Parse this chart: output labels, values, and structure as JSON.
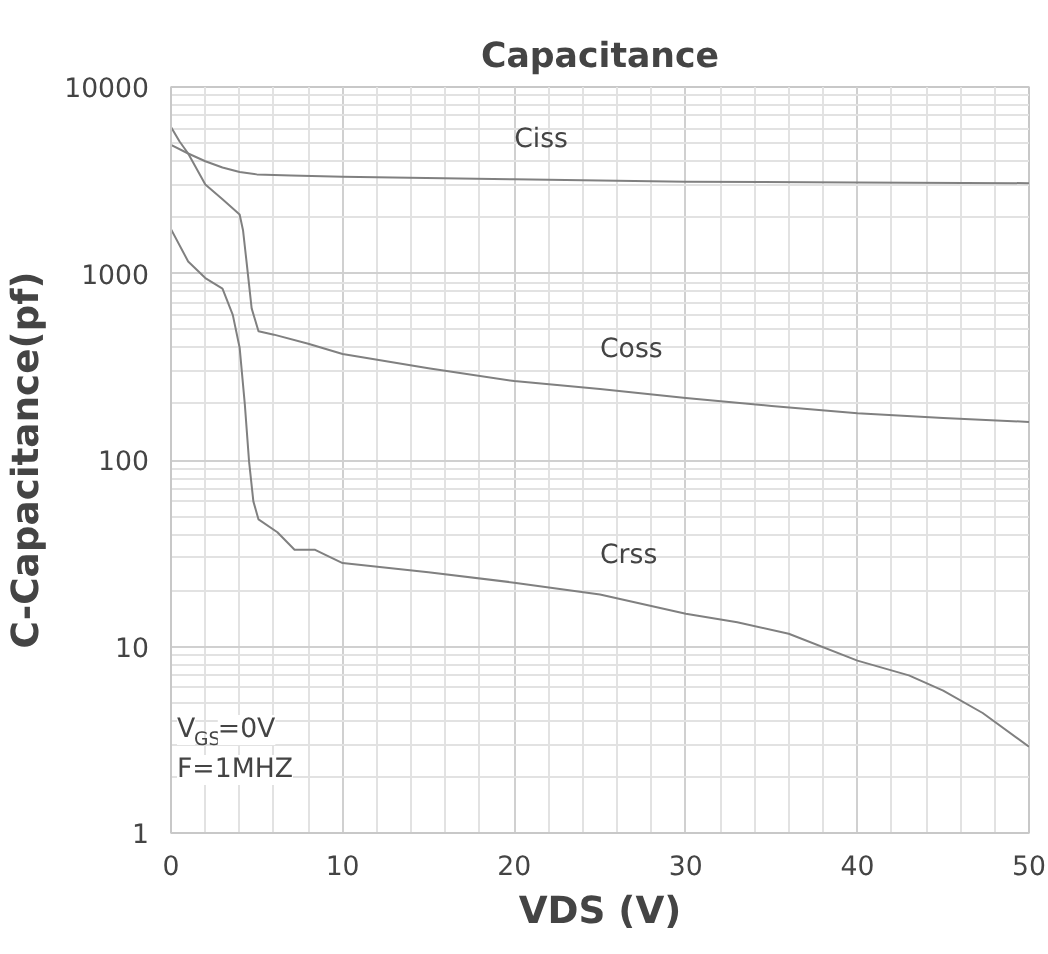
{
  "chart_data": {
    "type": "line",
    "title": "Capacitance",
    "xlabel": "VDS (V)",
    "ylabel": "C-Capacitance(pf)",
    "xlim": [
      0,
      50
    ],
    "ylim": [
      1,
      10000
    ],
    "xticks": [
      0,
      10,
      20,
      30,
      40,
      50
    ],
    "yticks": [
      1,
      10,
      100,
      1000,
      10000
    ],
    "log": "y",
    "grid": true,
    "marker": "none",
    "line_style": "solid",
    "series": [
      {
        "name": "Ciss",
        "color": "#808080",
        "x": [
          0,
          1,
          2,
          3,
          4,
          5,
          7,
          10,
          20,
          30,
          40,
          50
        ],
        "values": [
          4900,
          4400,
          4000,
          3700,
          3500,
          3400,
          3350,
          3300,
          3200,
          3100,
          3080,
          3050
        ]
      },
      {
        "name": "Coss",
        "color": "#808080",
        "x": [
          0,
          0.5,
          1,
          2,
          3,
          4,
          4.2,
          4.4,
          4.7,
          5.1,
          6,
          8,
          10,
          15,
          20,
          25,
          30,
          35,
          40,
          45,
          50
        ],
        "values": [
          6100,
          5100,
          4400,
          3000,
          2500,
          2070,
          1700,
          1160,
          650,
          490,
          470,
          420,
          370,
          310,
          265,
          240,
          215,
          195,
          178,
          168,
          160
        ]
      },
      {
        "name": "Crss",
        "color": "#808080",
        "x": [
          0,
          1,
          2,
          3,
          3.6,
          4,
          4.3,
          4.55,
          4.8,
          5.1,
          6.2,
          7.2,
          8.4,
          9,
          10,
          15,
          20,
          25,
          30,
          33,
          36,
          40,
          43,
          45,
          47.3,
          50
        ],
        "values": [
          1730,
          1160,
          945,
          830,
          600,
          400,
          200,
          98,
          60,
          48,
          41,
          33,
          33,
          31,
          28,
          25,
          22,
          19,
          15,
          13.5,
          11.7,
          8.4,
          7,
          5.8,
          4.4,
          2.9
        ]
      }
    ],
    "annotations": [
      "V$_{GS}$=0V",
      "F=1MHZ"
    ]
  }
}
